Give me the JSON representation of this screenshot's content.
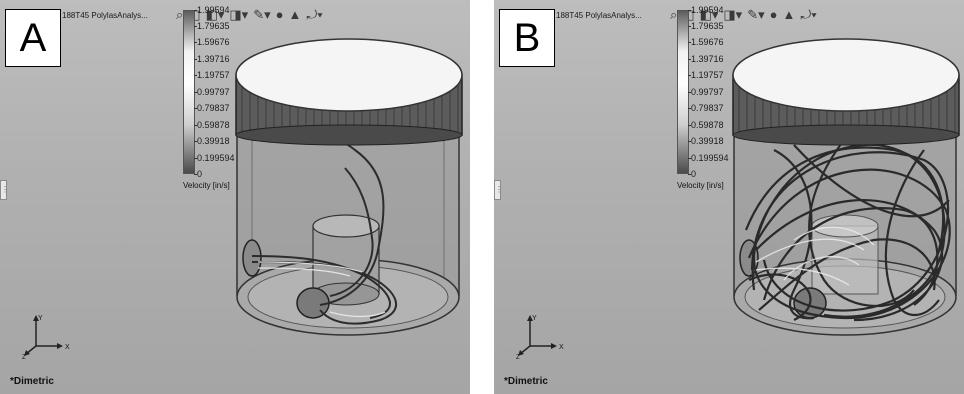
{
  "panels": [
    {
      "letter": "A",
      "filename": "188T45 PolylasAnalys...",
      "legend": {
        "ticks": [
          "1.99594",
          "1.79635",
          "1.59676",
          "1.39716",
          "1.19757",
          "0.99797",
          "0.79837",
          "0.59878",
          "0.39918",
          "0.199594",
          "0"
        ],
        "label": "Velocity [in/s]"
      },
      "triad": {
        "x": "X",
        "y": "Y",
        "z": "Z"
      },
      "view_label": "*Dimetric"
    },
    {
      "letter": "B",
      "filename": "188T45 PolylasAnalys...",
      "legend": {
        "ticks": [
          "1.99594",
          "1.79635",
          "1.59676",
          "1.39716",
          "1.19757",
          "0.99797",
          "0.79837",
          "0.59878",
          "0.39918",
          "0.199594",
          "0"
        ],
        "label": "Velocity [in/s]"
      },
      "triad": {
        "x": "X",
        "y": "Y",
        "z": "Z"
      },
      "view_label": "*Dimetric"
    }
  ],
  "toolbar_icons": [
    "zoom-icon",
    "view-orientation-icon",
    "display-style-icon",
    "hide-show-icon",
    "edit-appearance-icon",
    "apply-scene-icon",
    "view-settings-icon",
    "rotate-icon"
  ],
  "colors": {
    "background": "#b2b2b2",
    "lid": "#f4f4f4",
    "jar_band": "#6a6a6a",
    "streamline": "#333333"
  }
}
